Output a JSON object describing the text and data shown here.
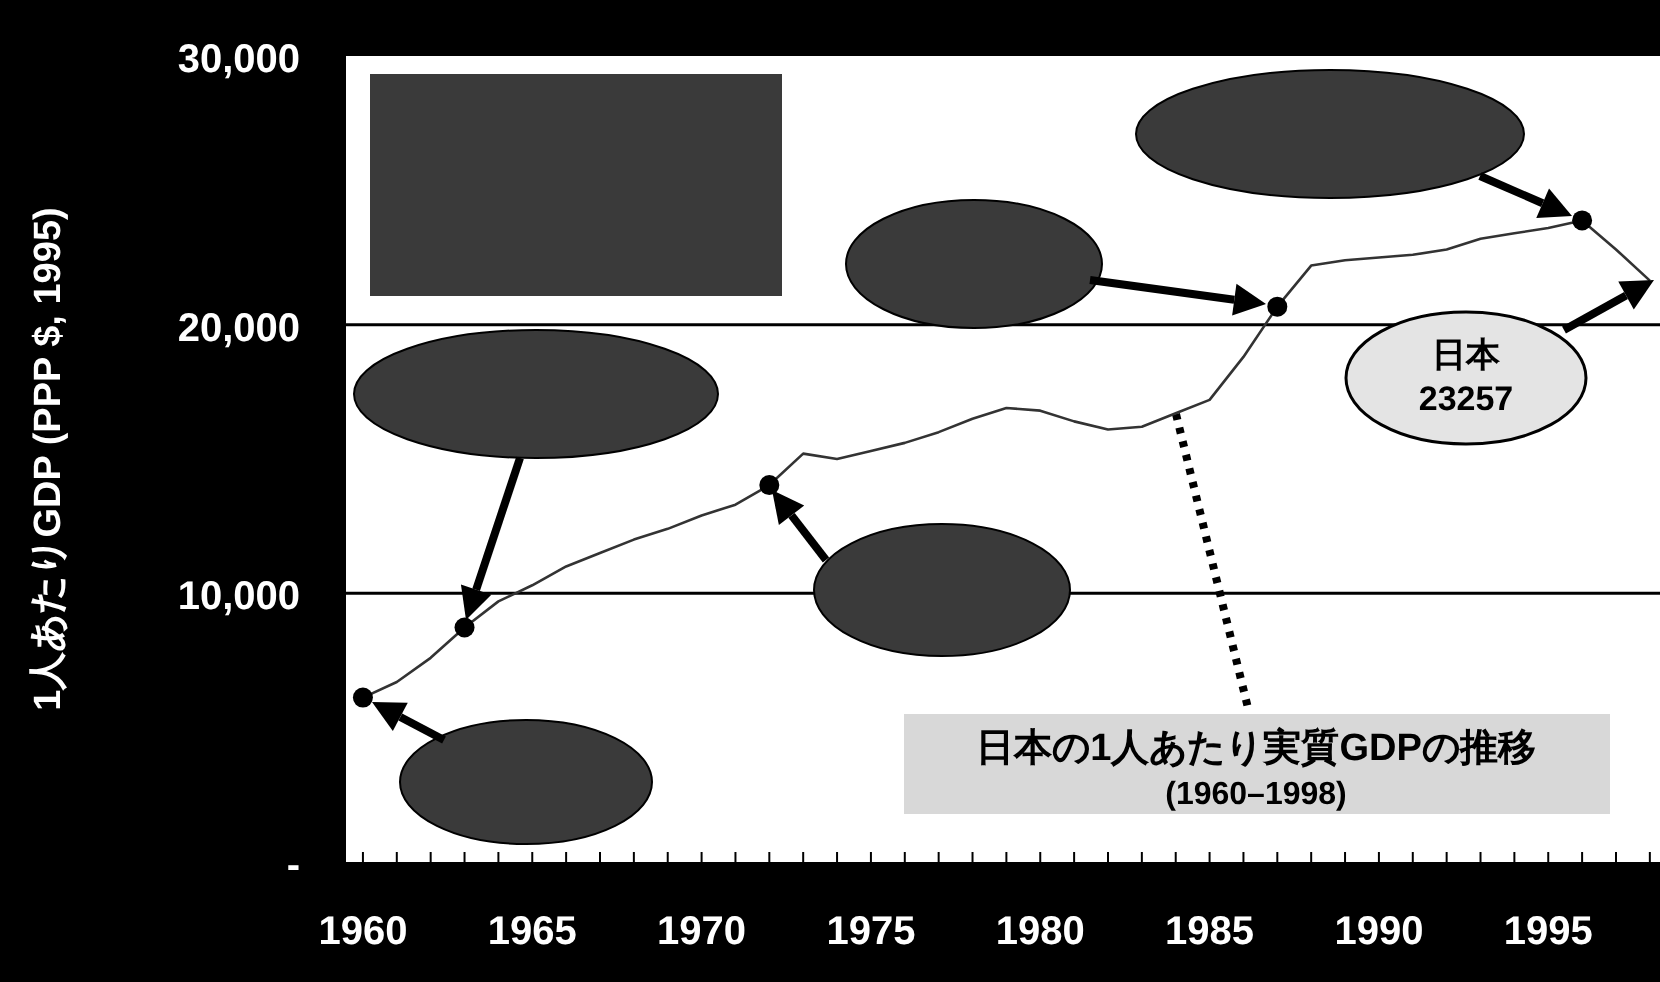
{
  "chart_data": {
    "type": "line",
    "title": "日本の1人あたり実質GDPの推移",
    "subtitle": "(1960–1998)",
    "ylabel": "1人あたりGDP (PPP $, 1995)",
    "x": [
      1960,
      1961,
      1962,
      1963,
      1964,
      1965,
      1966,
      1967,
      1968,
      1969,
      1970,
      1971,
      1972,
      1973,
      1974,
      1975,
      1976,
      1977,
      1978,
      1979,
      1980,
      1981,
      1982,
      1983,
      1984,
      1985,
      1986,
      1987,
      1988,
      1989,
      1990,
      1991,
      1992,
      1993,
      1994,
      1995,
      1996,
      1997,
      1998
    ],
    "series": [
      {
        "color": "#333333",
        "values": [
          6120,
          6700,
          7600,
          8730,
          9700,
          10300,
          11000,
          11500,
          12000,
          12400,
          12900,
          13300,
          14030,
          15200,
          15000,
          15300,
          15600,
          16000,
          16500,
          16900,
          16800,
          16400,
          16100,
          16200,
          16700,
          17200,
          18800,
          20670,
          22200,
          22400,
          22500,
          22600,
          22800,
          23200,
          23400,
          23600,
          23880,
          22800,
          21640
        ]
      },
      {
        "type": "scatter",
        "marker": "circle",
        "color": "#000000",
        "x": [
          1960,
          1963,
          1972,
          1987,
          1996
        ],
        "values": [
          6120,
          8730,
          14030,
          20670,
          23880
        ]
      }
    ],
    "xlim": [
      1959.5,
      1998.3
    ],
    "xticks": [
      1960,
      {
        "value": 1961,
        "label": null
      },
      {
        "value": 1962,
        "label": null
      },
      {
        "value": 1963,
        "label": null
      },
      {
        "value": 1964,
        "label": null
      },
      1965,
      {
        "value": 1966,
        "label": null
      },
      {
        "value": 1967,
        "label": null
      },
      {
        "value": 1968,
        "label": null
      },
      {
        "value": 1969,
        "label": null
      },
      1970,
      {
        "value": 1971,
        "label": null
      },
      {
        "value": 1972,
        "label": null
      },
      {
        "value": 1973,
        "label": null
      },
      {
        "value": 1974,
        "label": null
      },
      1975,
      {
        "value": 1976,
        "label": null
      },
      {
        "value": 1977,
        "label": null
      },
      {
        "value": 1978,
        "label": null
      },
      {
        "value": 1979,
        "label": null
      },
      1980,
      {
        "value": 1981,
        "label": null
      },
      {
        "value": 1982,
        "label": null
      },
      {
        "value": 1983,
        "label": null
      },
      {
        "value": 1984,
        "label": null
      },
      1985,
      {
        "value": 1986,
        "label": null
      },
      {
        "value": 1987,
        "label": null
      },
      {
        "value": 1988,
        "label": null
      },
      {
        "value": 1989,
        "label": null
      },
      1990,
      {
        "value": 1991,
        "label": null
      },
      {
        "value": 1992,
        "label": null
      },
      {
        "value": 1993,
        "label": null
      },
      {
        "value": 1994,
        "label": null
      },
      1995,
      {
        "value": 1996,
        "label": null
      },
      {
        "value": 1997,
        "label": null
      },
      {
        "value": 1998,
        "label": null
      }
    ],
    "ylim": [
      0,
      30000
    ],
    "yticks": [
      {
        "value": 0,
        "label": "-"
      },
      {
        "value": 10000,
        "label": "10,000"
      },
      {
        "value": 20000,
        "label": "20,000"
      },
      {
        "value": 30000,
        "label": "30,000"
      }
    ],
    "grid": "y",
    "annotations": [
      "日本\n23257"
    ]
  }
}
